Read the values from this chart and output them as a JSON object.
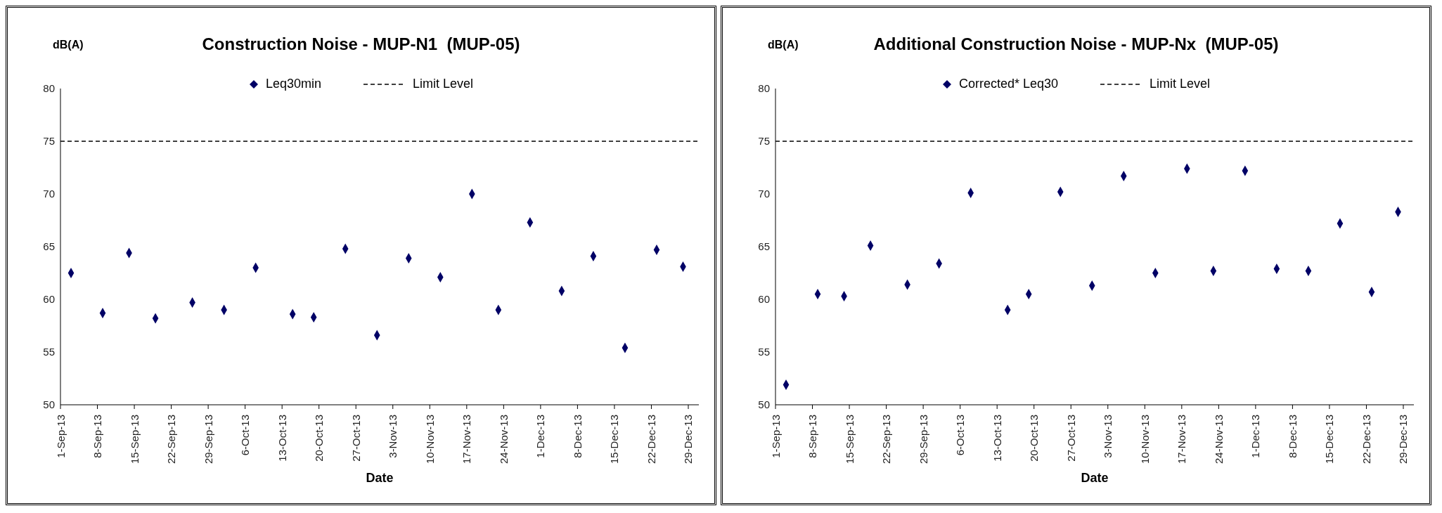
{
  "chart_data": [
    {
      "type": "scatter",
      "title": "Construction Noise - MUP-N1  (MUP-05)",
      "ylabel": "dB(A)",
      "xlabel": "Date",
      "marker": "diamond",
      "legend": "top",
      "grid": false,
      "x": [
        "--09-03",
        "--09-09",
        "--09-14",
        "--09-19",
        "--09-26",
        "--10-02",
        "--10-08",
        "--10-15",
        "--10-19",
        "--10-25",
        "--10-31",
        "--11-06",
        "--11-12",
        "--11-18",
        "--11-23",
        "--11-29",
        "--12-05",
        "--12-11",
        "--12-17",
        "--12-23",
        "--12-28"
      ],
      "series": [
        {
          "name": "Leq30min",
          "color": "#000066",
          "values": [
            62.5,
            58.7,
            64.4,
            58.2,
            59.7,
            59.0,
            63.0,
            58.6,
            58.3,
            64.8,
            56.6,
            63.9,
            62.1,
            70.0,
            59.0,
            67.3,
            60.8,
            64.1,
            55.4,
            64.7,
            63.1
          ]
        }
      ],
      "ref_lines": [
        {
          "axis": "y",
          "value": 75,
          "label": "Limit Level",
          "color": "#000000",
          "line_style": "dashed"
        }
      ],
      "xlim": [
        "--09-01",
        "--12-31"
      ],
      "xticks": [
        {
          "value": "--09-01",
          "label": "1-Sep-13"
        },
        {
          "value": "--09-08",
          "label": "8-Sep-13"
        },
        {
          "value": "--09-15",
          "label": "15-Sep-13"
        },
        {
          "value": "--09-22",
          "label": "22-Sep-13"
        },
        {
          "value": "--09-29",
          "label": "29-Sep-13"
        },
        {
          "value": "--10-06",
          "label": "6-Oct-13"
        },
        {
          "value": "--10-13",
          "label": "13-Oct-13"
        },
        {
          "value": "--10-20",
          "label": "20-Oct-13"
        },
        {
          "value": "--10-27",
          "label": "27-Oct-13"
        },
        {
          "value": "--11-03",
          "label": "3-Nov-13"
        },
        {
          "value": "--11-10",
          "label": "10-Nov-13"
        },
        {
          "value": "--11-17",
          "label": "17-Nov-13"
        },
        {
          "value": "--11-24",
          "label": "24-Nov-13"
        },
        {
          "value": "--12-01",
          "label": "1-Dec-13"
        },
        {
          "value": "--12-08",
          "label": "8-Dec-13"
        },
        {
          "value": "--12-15",
          "label": "15-Dec-13"
        },
        {
          "value": "--12-22",
          "label": "22-Dec-13"
        },
        {
          "value": "--12-29",
          "label": "29-Dec-13"
        }
      ],
      "ylim": [
        50,
        80
      ],
      "yticks": [
        50,
        55,
        60,
        65,
        70,
        75,
        80
      ]
    },
    {
      "type": "scatter",
      "title": "Additional Construction Noise - MUP-Nx  (MUP-05)",
      "ylabel": "dB(A)",
      "xlabel": "Date",
      "marker": "diamond",
      "legend": "top",
      "grid": false,
      "x": [
        "--09-03",
        "--09-09",
        "--09-14",
        "--09-19",
        "--09-26",
        "--10-02",
        "--10-08",
        "--10-15",
        "--10-19",
        "--10-25",
        "--10-31",
        "--11-06",
        "--11-12",
        "--11-18",
        "--11-23",
        "--11-29",
        "--12-05",
        "--12-11",
        "--12-17",
        "--12-23",
        "--12-28"
      ],
      "series": [
        {
          "name": "Corrected* Leq30",
          "color": "#000066",
          "values": [
            51.9,
            60.5,
            60.3,
            65.1,
            61.4,
            63.4,
            70.1,
            59.0,
            60.5,
            70.2,
            61.3,
            71.7,
            62.5,
            72.4,
            62.7,
            72.2,
            62.9,
            62.7,
            67.2,
            60.7,
            68.3
          ]
        }
      ],
      "ref_lines": [
        {
          "axis": "y",
          "value": 75,
          "label": "Limit Level",
          "color": "#000000",
          "line_style": "dashed"
        }
      ],
      "xlim": [
        "--09-01",
        "--12-31"
      ],
      "xticks": [
        {
          "value": "--09-01",
          "label": "1-Sep-13"
        },
        {
          "value": "--09-08",
          "label": "8-Sep-13"
        },
        {
          "value": "--09-15",
          "label": "15-Sep-13"
        },
        {
          "value": "--09-22",
          "label": "22-Sep-13"
        },
        {
          "value": "--09-29",
          "label": "29-Sep-13"
        },
        {
          "value": "--10-06",
          "label": "6-Oct-13"
        },
        {
          "value": "--10-13",
          "label": "13-Oct-13"
        },
        {
          "value": "--10-20",
          "label": "20-Oct-13"
        },
        {
          "value": "--10-27",
          "label": "27-Oct-13"
        },
        {
          "value": "--11-03",
          "label": "3-Nov-13"
        },
        {
          "value": "--11-10",
          "label": "10-Nov-13"
        },
        {
          "value": "--11-17",
          "label": "17-Nov-13"
        },
        {
          "value": "--11-24",
          "label": "24-Nov-13"
        },
        {
          "value": "--12-01",
          "label": "1-Dec-13"
        },
        {
          "value": "--12-08",
          "label": "8-Dec-13"
        },
        {
          "value": "--12-15",
          "label": "15-Dec-13"
        },
        {
          "value": "--12-22",
          "label": "22-Dec-13"
        },
        {
          "value": "--12-29",
          "label": "29-Dec-13"
        }
      ],
      "ylim": [
        50,
        80
      ],
      "yticks": [
        50,
        55,
        60,
        65,
        70,
        75,
        80
      ]
    }
  ]
}
